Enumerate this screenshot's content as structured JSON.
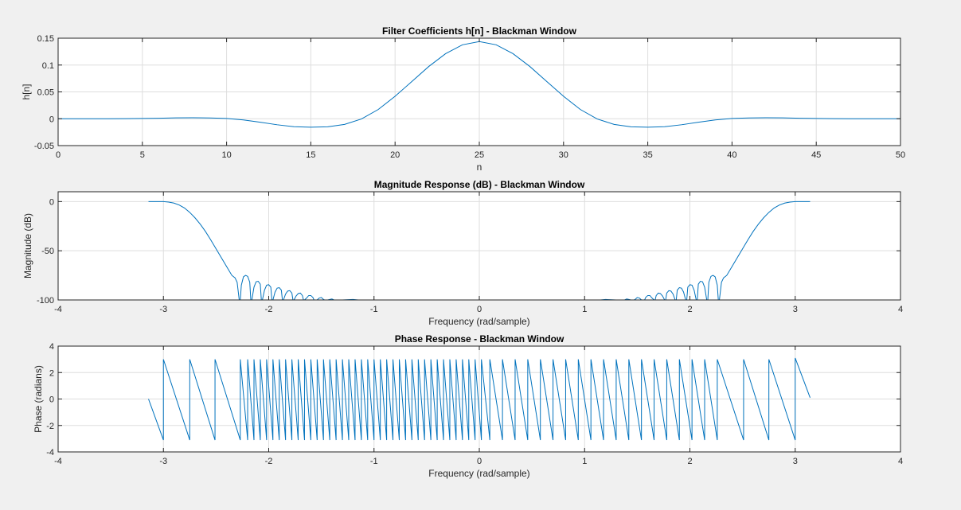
{
  "chart_data": [
    {
      "type": "line",
      "title": "Filter Coefficients h[n] - Blackman Window",
      "xlabel": "n",
      "ylabel": "h[n]",
      "xlim": [
        0,
        50
      ],
      "ylim": [
        -0.05,
        0.15
      ],
      "xticks": [
        "0",
        "5",
        "10",
        "15",
        "20",
        "25",
        "30",
        "35",
        "40",
        "45",
        "50"
      ],
      "yticks": [
        "-0.05",
        "0",
        "0.05",
        "0.1",
        "0.15"
      ],
      "grid": true,
      "series": [
        {
          "color": "#0072bd",
          "x": [
            0,
            1,
            2,
            3,
            4,
            5,
            6,
            7,
            8,
            9,
            10,
            11,
            12,
            13,
            14,
            15,
            16,
            17,
            18,
            19,
            20,
            21,
            22,
            23,
            24,
            25,
            26,
            27,
            28,
            29,
            30,
            31,
            32,
            33,
            34,
            35,
            36,
            37,
            38,
            39,
            40,
            41,
            42,
            43,
            44,
            45,
            46,
            47,
            48,
            49,
            50
          ],
          "y": [
            0,
            0,
            0,
            0,
            0.0002,
            0.0006,
            0.001,
            0.0016,
            0.0018,
            0.0015,
            0.0005,
            -0.0022,
            -0.0065,
            -0.0112,
            -0.0148,
            -0.0158,
            -0.015,
            -0.0105,
            -0.0005,
            0.0172,
            0.0418,
            0.0694,
            0.0973,
            0.1212,
            0.1377,
            0.1436,
            0.1377,
            0.1212,
            0.0973,
            0.0694,
            0.0418,
            0.0172,
            -0.0005,
            -0.0105,
            -0.015,
            -0.0158,
            -0.0148,
            -0.0112,
            -0.0065,
            -0.0022,
            0.0005,
            0.0015,
            0.0018,
            0.0016,
            0.001,
            0.0006,
            0.0002,
            0,
            0,
            0,
            0
          ]
        }
      ]
    },
    {
      "type": "line",
      "title": "Magnitude Response (dB) - Blackman Window",
      "xlabel": "Frequency (rad/sample)",
      "ylabel": "Magnitude (dB)",
      "xlim": [
        -4,
        4
      ],
      "ylim": [
        -100,
        10
      ],
      "xticks": [
        "-4",
        "-3",
        "-2",
        "-1",
        "0",
        "1",
        "2",
        "3",
        "4"
      ],
      "yticks": [
        "-100",
        "-50",
        "0"
      ],
      "grid": true,
      "series": [
        {
          "color": "#0072bd",
          "x": [
            -3.1416,
            -3.05,
            -3.0,
            -2.95,
            -2.9,
            -2.85,
            -2.8,
            -2.75,
            -2.7,
            -2.65,
            -2.6,
            -2.55,
            -2.5,
            -2.45,
            -2.4,
            -2.35,
            -2.32,
            -2.3,
            -2.28,
            -2.27,
            -2.26,
            -2.24,
            -2.22,
            -2.2,
            -2.18,
            -2.17,
            -2.16,
            -2.14,
            -2.12,
            -2.1,
            -2.08,
            -2.07,
            -2.06,
            -2.04,
            -2.02,
            -2.0,
            -1.98,
            -1.97,
            -1.96,
            -1.94,
            -1.92,
            -1.9,
            -1.88,
            -1.87,
            -1.86,
            -1.84,
            -1.82,
            -1.8,
            -1.78,
            -1.77,
            -1.76,
            -1.74,
            -1.72,
            -1.7,
            -1.68,
            -1.67,
            -1.66,
            -1.64,
            -1.62,
            -1.6,
            -1.58,
            -1.57,
            -1.56,
            -1.54,
            -1.52,
            -1.5,
            -1.48,
            -1.47,
            -1.46,
            -1.44,
            -1.42,
            -1.4,
            -1.38,
            -1.37,
            -1.36,
            -1.3,
            -1.2,
            -1.15
          ],
          "y": [
            0,
            0,
            0,
            -0.5,
            -1.5,
            -3.5,
            -6.5,
            -11,
            -16.5,
            -23,
            -30.5,
            -39,
            -48,
            -57,
            -66,
            -75,
            -77.5,
            -82,
            -100,
            -100,
            -85,
            -76.5,
            -75,
            -76,
            -82,
            -100,
            -100,
            -87,
            -81.5,
            -81,
            -84,
            -100,
            -100,
            -90,
            -85,
            -84.5,
            -87,
            -100,
            -100,
            -92,
            -88,
            -87.5,
            -90,
            -100,
            -100,
            -94,
            -91,
            -90.5,
            -93,
            -100,
            -100,
            -96,
            -93.5,
            -93,
            -95.5,
            -100,
            -100,
            -98,
            -95.5,
            -95.5,
            -97.5,
            -100,
            -100,
            -100,
            -98,
            -97.5,
            -99.5,
            -100,
            -100,
            -100,
            -99.5,
            -99,
            -100,
            -100,
            -100,
            -100,
            -99.5,
            -100
          ]
        },
        {
          "color": "#0072bd",
          "x": [
            1.15,
            1.2,
            1.3,
            1.36,
            1.37,
            1.38,
            1.4,
            1.42,
            1.44,
            1.46,
            1.47,
            1.48,
            1.5,
            1.52,
            1.54,
            1.56,
            1.57,
            1.58,
            1.6,
            1.62,
            1.64,
            1.66,
            1.67,
            1.68,
            1.7,
            1.72,
            1.74,
            1.76,
            1.77,
            1.78,
            1.8,
            1.82,
            1.84,
            1.86,
            1.87,
            1.88,
            1.9,
            1.92,
            1.94,
            1.96,
            1.97,
            1.98,
            2.0,
            2.02,
            2.04,
            2.06,
            2.07,
            2.08,
            2.1,
            2.12,
            2.14,
            2.16,
            2.17,
            2.18,
            2.2,
            2.22,
            2.24,
            2.26,
            2.27,
            2.28,
            2.3,
            2.32,
            2.35,
            2.4,
            2.45,
            2.5,
            2.55,
            2.6,
            2.65,
            2.7,
            2.75,
            2.8,
            2.85,
            2.9,
            2.95,
            3.0,
            3.05,
            3.1416
          ],
          "y": [
            -100,
            -99.5,
            -100,
            -100,
            -100,
            -100,
            -99,
            -99.5,
            -100,
            -100,
            -100,
            -99.5,
            -97.5,
            -98,
            -100,
            -100,
            -100,
            -97.5,
            -95.5,
            -95.5,
            -98,
            -100,
            -100,
            -95.5,
            -93,
            -93.5,
            -96,
            -100,
            -100,
            -93,
            -90.5,
            -91,
            -94,
            -100,
            -100,
            -90,
            -87.5,
            -88,
            -92,
            -100,
            -100,
            -87,
            -84.5,
            -85,
            -90,
            -100,
            -100,
            -84,
            -81,
            -81.5,
            -87,
            -100,
            -100,
            -82,
            -76,
            -75,
            -76.5,
            -85,
            -100,
            -100,
            -82,
            -77.5,
            -75,
            -66,
            -57,
            -48,
            -39,
            -30.5,
            -23,
            -16.5,
            -11,
            -6.5,
            -3.5,
            -1.5,
            -0.5,
            0,
            0,
            0
          ]
        }
      ]
    },
    {
      "type": "line",
      "title": "Phase Response - Blackman Window",
      "xlabel": "Frequency (rad/sample)",
      "ylabel": "Phase (radians)",
      "xlim": [
        -4,
        4
      ],
      "ylim": [
        -4,
        4
      ],
      "xticks": [
        "-4",
        "-3",
        "-2",
        "-1",
        "0",
        "1",
        "2",
        "3",
        "4"
      ],
      "yticks": [
        "-4",
        "-2",
        "0",
        "2",
        "4"
      ],
      "grid": true,
      "series": [
        {
          "color": "#0072bd",
          "x": [
            -3.1416,
            -3.0,
            -3.0,
            -2.75,
            -2.75,
            -2.51,
            -2.51,
            -2.27,
            -2.27,
            -2.2,
            -2.2,
            -2.14,
            -2.14,
            -2.08,
            -2.08,
            -2.02,
            -2.02,
            -1.96,
            -1.96,
            -1.9,
            -1.9,
            -1.84,
            -1.84,
            -1.78,
            -1.78,
            -1.72,
            -1.72,
            -1.66,
            -1.66,
            -1.6,
            -1.6,
            -1.54,
            -1.54,
            -1.48,
            -1.48,
            -1.42,
            -1.42,
            -1.36,
            -1.36,
            -1.3,
            -1.3,
            -1.24,
            -1.24,
            -1.18,
            -1.18,
            -1.12,
            -1.12,
            -1.06,
            -1.06,
            -1.0,
            -1.0,
            -0.94,
            -0.94,
            -0.88,
            -0.88,
            -0.82,
            -0.82,
            -0.76,
            -0.76,
            -0.7,
            -0.7,
            -0.64,
            -0.64,
            -0.58,
            -0.58,
            -0.52,
            -0.52,
            -0.46,
            -0.46,
            -0.4,
            -0.4,
            -0.34,
            -0.34,
            -0.28,
            -0.28,
            -0.22,
            -0.22,
            -0.16,
            -0.16,
            -0.1,
            -0.1,
            -0.04,
            -0.04,
            0.02,
            0.02,
            0.1,
            0.1,
            0.22,
            0.22,
            0.34,
            0.34,
            0.46,
            0.46,
            0.58,
            0.58,
            0.7,
            0.7,
            0.82,
            0.82,
            0.94,
            0.94,
            1.06,
            1.06,
            1.18,
            1.18,
            1.3,
            1.3,
            1.42,
            1.42,
            1.54,
            1.54,
            1.66,
            1.66,
            1.78,
            1.78,
            1.9,
            1.9,
            2.02,
            2.02,
            2.14,
            2.14,
            2.26,
            2.26,
            2.51,
            2.51,
            2.75,
            2.75,
            3.0,
            3.0,
            3.1416
          ],
          "y": [
            0,
            -3.1,
            3.0,
            -3.1,
            3.0,
            -3.1,
            3.0,
            -3.1,
            3.0,
            -3.1,
            3.0,
            -3.1,
            3.0,
            -3.1,
            3.0,
            -3.1,
            3.0,
            -3.1,
            3.0,
            -3.1,
            3.0,
            -3.1,
            3.0,
            -3.1,
            3.0,
            -3.1,
            3.0,
            -3.1,
            3.0,
            -3.1,
            3.0,
            -3.1,
            3.0,
            -3.1,
            3.0,
            -3.1,
            3.0,
            -3.1,
            3.0,
            -3.1,
            3.0,
            -3.1,
            3.0,
            -3.1,
            3.0,
            -3.1,
            3.0,
            -3.1,
            3.0,
            -3.1,
            3.0,
            -3.1,
            3.0,
            -3.1,
            3.0,
            -3.1,
            3.0,
            -3.1,
            3.0,
            -3.1,
            3.0,
            -3.1,
            3.0,
            -3.1,
            3.0,
            -3.1,
            3.0,
            -3.1,
            3.0,
            -3.1,
            3.0,
            -3.1,
            3.0,
            -3.1,
            3.0,
            -3.1,
            3.0,
            -3.1,
            3.0,
            -3.1,
            3.0,
            -3.1,
            3.0,
            -3.1,
            3.0,
            -3.1,
            3.0,
            -3.1,
            3.0,
            -3.1,
            3.0,
            -3.1,
            3.0,
            -3.1,
            3.0,
            -3.1,
            3.0,
            -3.1,
            3.0,
            -3.1,
            3.0,
            -3.1,
            3.0,
            -3.1,
            3.0,
            -3.1,
            3.0,
            -3.1,
            3.0,
            -3.1,
            3.0,
            -3.1,
            3.0,
            -3.1,
            3.0,
            -3.1,
            3.0,
            -3.1,
            3.0,
            -3.1,
            3.0,
            -3.1,
            3.0,
            -3.1,
            3.0,
            -3.1,
            3.0,
            -3.1,
            3.1,
            0.1
          ]
        }
      ]
    }
  ]
}
